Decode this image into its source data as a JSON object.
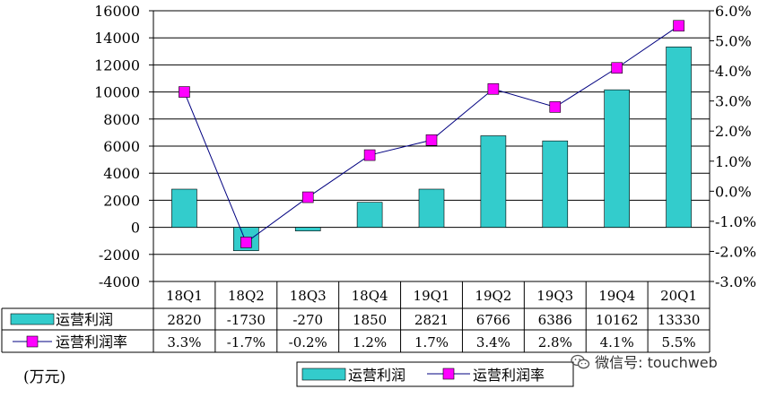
{
  "chart_data": {
    "type": "bar+line",
    "categories": [
      "18Q1",
      "18Q2",
      "18Q3",
      "18Q4",
      "19Q1",
      "19Q2",
      "19Q3",
      "19Q4",
      "20Q1"
    ],
    "series": [
      {
        "name": "运营利润",
        "type": "bar",
        "axis": "left",
        "values": [
          2820,
          -1730,
          -270,
          1850,
          2821,
          6766,
          6386,
          10162,
          13330
        ],
        "labels": [
          "2820",
          "-1730",
          "-270",
          "1850",
          "2821",
          "6766",
          "6386",
          "10162",
          "13330"
        ],
        "color": "#33cccc"
      },
      {
        "name": "运营利润率",
        "type": "line",
        "axis": "right",
        "values": [
          3.3,
          -1.7,
          -0.2,
          1.2,
          1.7,
          3.4,
          2.8,
          4.1,
          5.5
        ],
        "labels": [
          "3.3%",
          "-1.7%",
          "-0.2%",
          "1.2%",
          "1.7%",
          "3.4%",
          "2.8%",
          "4.1%",
          "5.5%"
        ],
        "color": "#ff00ff",
        "line_color": "#000080"
      }
    ],
    "y_left": {
      "ylim": [
        -4000,
        16000
      ],
      "ticks": [
        16000,
        14000,
        12000,
        10000,
        8000,
        6000,
        4000,
        2000,
        0,
        -2000,
        -4000
      ],
      "tick_labels": [
        "16000",
        "14000",
        "12000",
        "10000",
        "8000",
        "6000",
        "4000",
        "2000",
        "0",
        "-2000",
        "-4000"
      ]
    },
    "y_right": {
      "ylim": [
        -3.0,
        6.0
      ],
      "ticks": [
        6,
        5,
        4,
        3,
        2,
        1,
        0,
        -1,
        -2,
        -3
      ],
      "tick_labels": [
        "6.0%",
        "5.0%",
        "4.0%",
        "3.0%",
        "2.0%",
        "1.0%",
        "0.0%",
        "-1.0%",
        "-2.0%",
        "-3.0%"
      ]
    },
    "grid": true,
    "legend": "bottom-center",
    "data_table": true,
    "unit": "(万元)"
  },
  "watermark": "微信号: touchweb"
}
